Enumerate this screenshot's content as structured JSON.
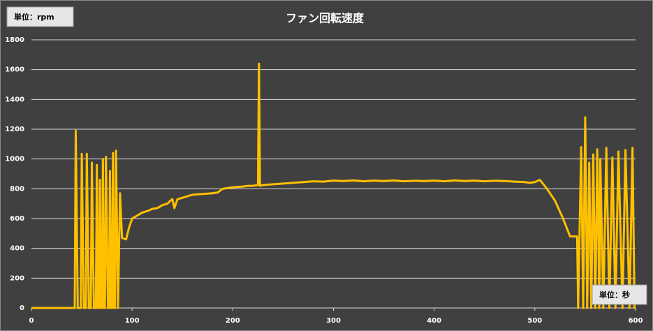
{
  "chart_data": {
    "type": "line",
    "title": "ファン回転速度",
    "annotations": [
      "単位：rpm",
      "単位：秒"
    ],
    "x": [
      0,
      43,
      44,
      46,
      49,
      50,
      52,
      54,
      55,
      57,
      59,
      60,
      62,
      64,
      65,
      66,
      67,
      68,
      69,
      70,
      71,
      72,
      73,
      74,
      76,
      77,
      78,
      79,
      80,
      81,
      82,
      83,
      84,
      86,
      88,
      90,
      94,
      97,
      100,
      105,
      110,
      115,
      120,
      125,
      130,
      135,
      138,
      140,
      142,
      145,
      150,
      160,
      170,
      180,
      185,
      190,
      200,
      210,
      215,
      220,
      225,
      226,
      227,
      230,
      240,
      250,
      260,
      270,
      280,
      290,
      300,
      310,
      320,
      330,
      340,
      350,
      360,
      370,
      380,
      390,
      400,
      410,
      420,
      430,
      440,
      450,
      460,
      470,
      480,
      490,
      495,
      500,
      505,
      512,
      520,
      528,
      535,
      542,
      543,
      546,
      548,
      550,
      552,
      554,
      556,
      558,
      560,
      562,
      564,
      565,
      568,
      571,
      574,
      577,
      580,
      583,
      587,
      590,
      594,
      597,
      599,
      600
    ],
    "series": [
      {
        "name": "rpm",
        "color": "#ffc000",
        "values": [
          0,
          0,
          1190,
          0,
          0,
          1035,
          0,
          0,
          1035,
          0,
          0,
          975,
          0,
          0,
          960,
          0,
          0,
          860,
          0,
          0,
          1000,
          0,
          0,
          1015,
          0,
          0,
          920,
          0,
          0,
          1040,
          0,
          0,
          1055,
          0,
          770,
          470,
          460,
          540,
          600,
          620,
          640,
          650,
          665,
          670,
          690,
          700,
          720,
          730,
          670,
          730,
          740,
          760,
          765,
          770,
          775,
          800,
          810,
          815,
          820,
          820,
          825,
          1640,
          820,
          825,
          830,
          835,
          840,
          845,
          850,
          848,
          855,
          852,
          856,
          850,
          855,
          852,
          856,
          850,
          854,
          852,
          855,
          850,
          856,
          852,
          855,
          850,
          854,
          852,
          848,
          845,
          840,
          845,
          860,
          800,
          720,
          600,
          480,
          480,
          0,
          1080,
          0,
          1280,
          0,
          975,
          0,
          1030,
          0,
          1065,
          0,
          1000,
          0,
          1075,
          0,
          1010,
          0,
          1050,
          0,
          1060,
          0,
          1075,
          0,
          0
        ]
      }
    ],
    "xlim": [
      0,
      600
    ],
    "xticks": [
      0,
      100,
      200,
      300,
      400,
      500,
      600
    ],
    "ylim": [
      0,
      1800
    ],
    "yticks": [
      0,
      200,
      400,
      600,
      800,
      1000,
      1200,
      1400,
      1600,
      1800
    ],
    "grid": true
  }
}
